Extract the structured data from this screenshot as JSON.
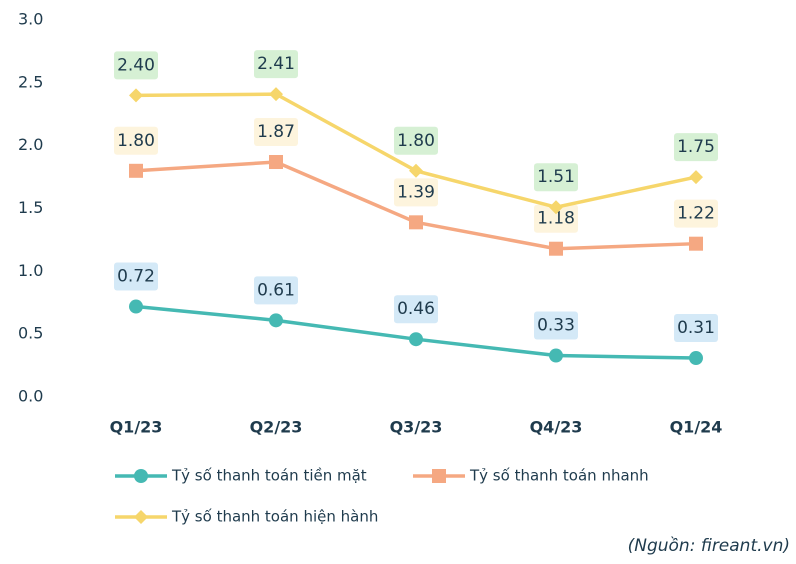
{
  "chart_data": {
    "type": "line",
    "categories": [
      "Q1/23",
      "Q2/23",
      "Q3/23",
      "Q4/23",
      "Q1/24"
    ],
    "series": [
      {
        "name": "Tỷ số thanh toán tiền mặt",
        "color": "#45b9b3",
        "marker": "circle",
        "label_color": "#d4e9f7",
        "values": [
          0.72,
          0.61,
          0.46,
          0.33,
          0.31
        ],
        "value_labels": [
          "0.72",
          "0.61",
          "0.46",
          "0.33",
          "0.31"
        ]
      },
      {
        "name": "Tỷ số thanh toán nhanh",
        "color": "#f5a882",
        "marker": "square",
        "label_color": "#fdf4dd",
        "values": [
          1.8,
          1.87,
          1.39,
          1.18,
          1.22
        ],
        "value_labels": [
          "1.80",
          "1.87",
          "1.39",
          "1.18",
          "1.22"
        ]
      },
      {
        "name": "Tỷ số thanh toán hiện hành",
        "color": "#f6d66b",
        "marker": "diamond",
        "label_color": "#d6f0d4",
        "values": [
          2.4,
          2.41,
          1.8,
          1.51,
          1.75
        ],
        "value_labels": [
          "2.40",
          "2.41",
          "1.80",
          "1.51",
          "1.75"
        ]
      }
    ],
    "ylim": [
      0,
      3
    ],
    "yticks": [
      {
        "value": 0,
        "label": "0.0"
      },
      0.5,
      {
        "value": 1,
        "label": "1.0"
      },
      1.5,
      {
        "value": 2,
        "label": "2.0"
      },
      2.5,
      {
        "value": 3,
        "label": "3.0"
      }
    ],
    "grid": false,
    "source": "(Nguồn: fireant.vn)"
  }
}
